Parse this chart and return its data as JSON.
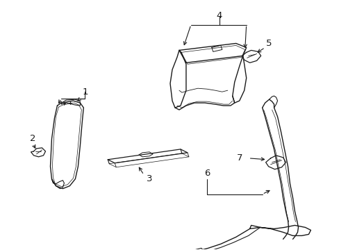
{
  "background_color": "#ffffff",
  "line_color": "#1a1a1a",
  "fig_width": 4.89,
  "fig_height": 3.6,
  "dpi": 100,
  "font_size": 9.5
}
